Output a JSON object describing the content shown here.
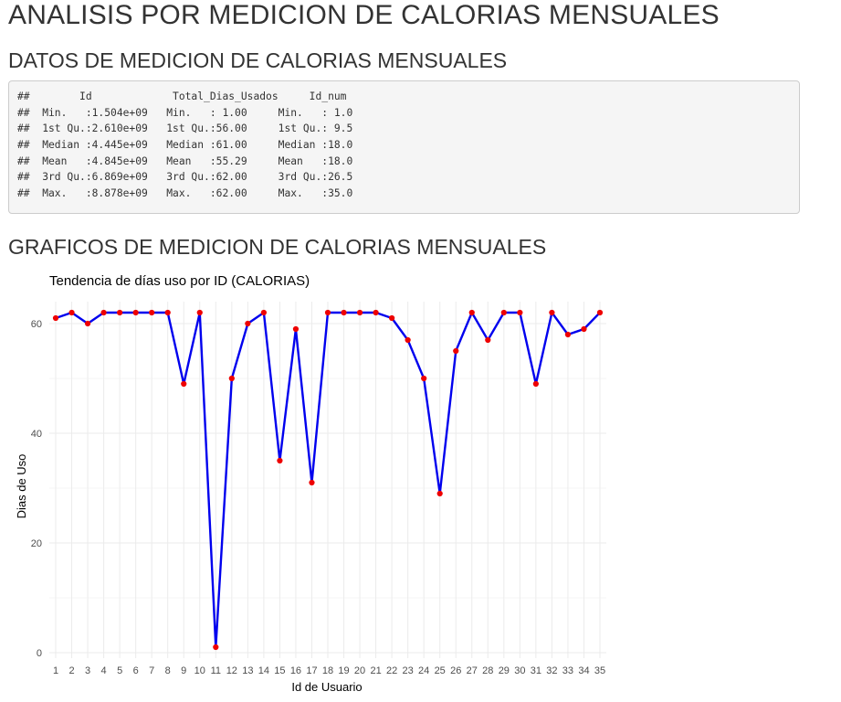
{
  "page": {
    "title": "ANALISIS POR MEDICION DE CALORIAS MENSUALES",
    "section_data": "DATOS DE MEDICION DE CALORIAS MENSUALES",
    "section_chart": "GRAFICOS DE MEDICION DE CALORIAS MENSUALES"
  },
  "summary_lines": [
    "##        Id             Total_Dias_Usados     Id_num    ",
    "##  Min.   :1.504e+09   Min.   : 1.00     Min.   : 1.0  ",
    "##  1st Qu.:2.610e+09   1st Qu.:56.00     1st Qu.: 9.5  ",
    "##  Median :4.445e+09   Median :61.00     Median :18.0  ",
    "##  Mean   :4.845e+09   Mean   :55.29     Mean   :18.0  ",
    "##  3rd Qu.:6.869e+09   3rd Qu.:62.00     3rd Qu.:26.5  ",
    "##  Max.   :8.878e+09   Max.   :62.00     Max.   :35.0  "
  ],
  "chart_data": {
    "type": "line",
    "title": "Tendencia de días uso por ID (CALORIAS)",
    "xlabel": "Id de Usuario",
    "ylabel": "Dias de Uso",
    "x": [
      1,
      2,
      3,
      4,
      5,
      6,
      7,
      8,
      9,
      10,
      11,
      12,
      13,
      14,
      15,
      16,
      17,
      18,
      19,
      20,
      21,
      22,
      23,
      24,
      25,
      26,
      27,
      28,
      29,
      30,
      31,
      32,
      33,
      34,
      35
    ],
    "y": [
      61,
      62,
      60,
      62,
      62,
      62,
      62,
      62,
      49,
      62,
      1,
      50,
      60,
      62,
      35,
      59,
      31,
      62,
      62,
      62,
      62,
      61,
      57,
      50,
      29,
      55,
      62,
      57,
      62,
      62,
      49,
      62,
      58,
      59,
      62
    ],
    "xticks": [
      "1",
      "2",
      "3",
      "4",
      "5",
      "6",
      "7",
      "8",
      "9",
      "10",
      "11",
      "12",
      "13",
      "14",
      "15",
      "16",
      "17",
      "18",
      "19",
      "20",
      "21",
      "22",
      "23",
      "24",
      "25",
      "26",
      "27",
      "28",
      "29",
      "30",
      "31",
      "32",
      "33",
      "34",
      "35"
    ],
    "yticks": [
      "0",
      "20",
      "40",
      "60"
    ],
    "ylim": [
      -1,
      64
    ],
    "line_color": "#0000ee",
    "point_color": "#ee0000",
    "grid": true,
    "legend": "none"
  }
}
